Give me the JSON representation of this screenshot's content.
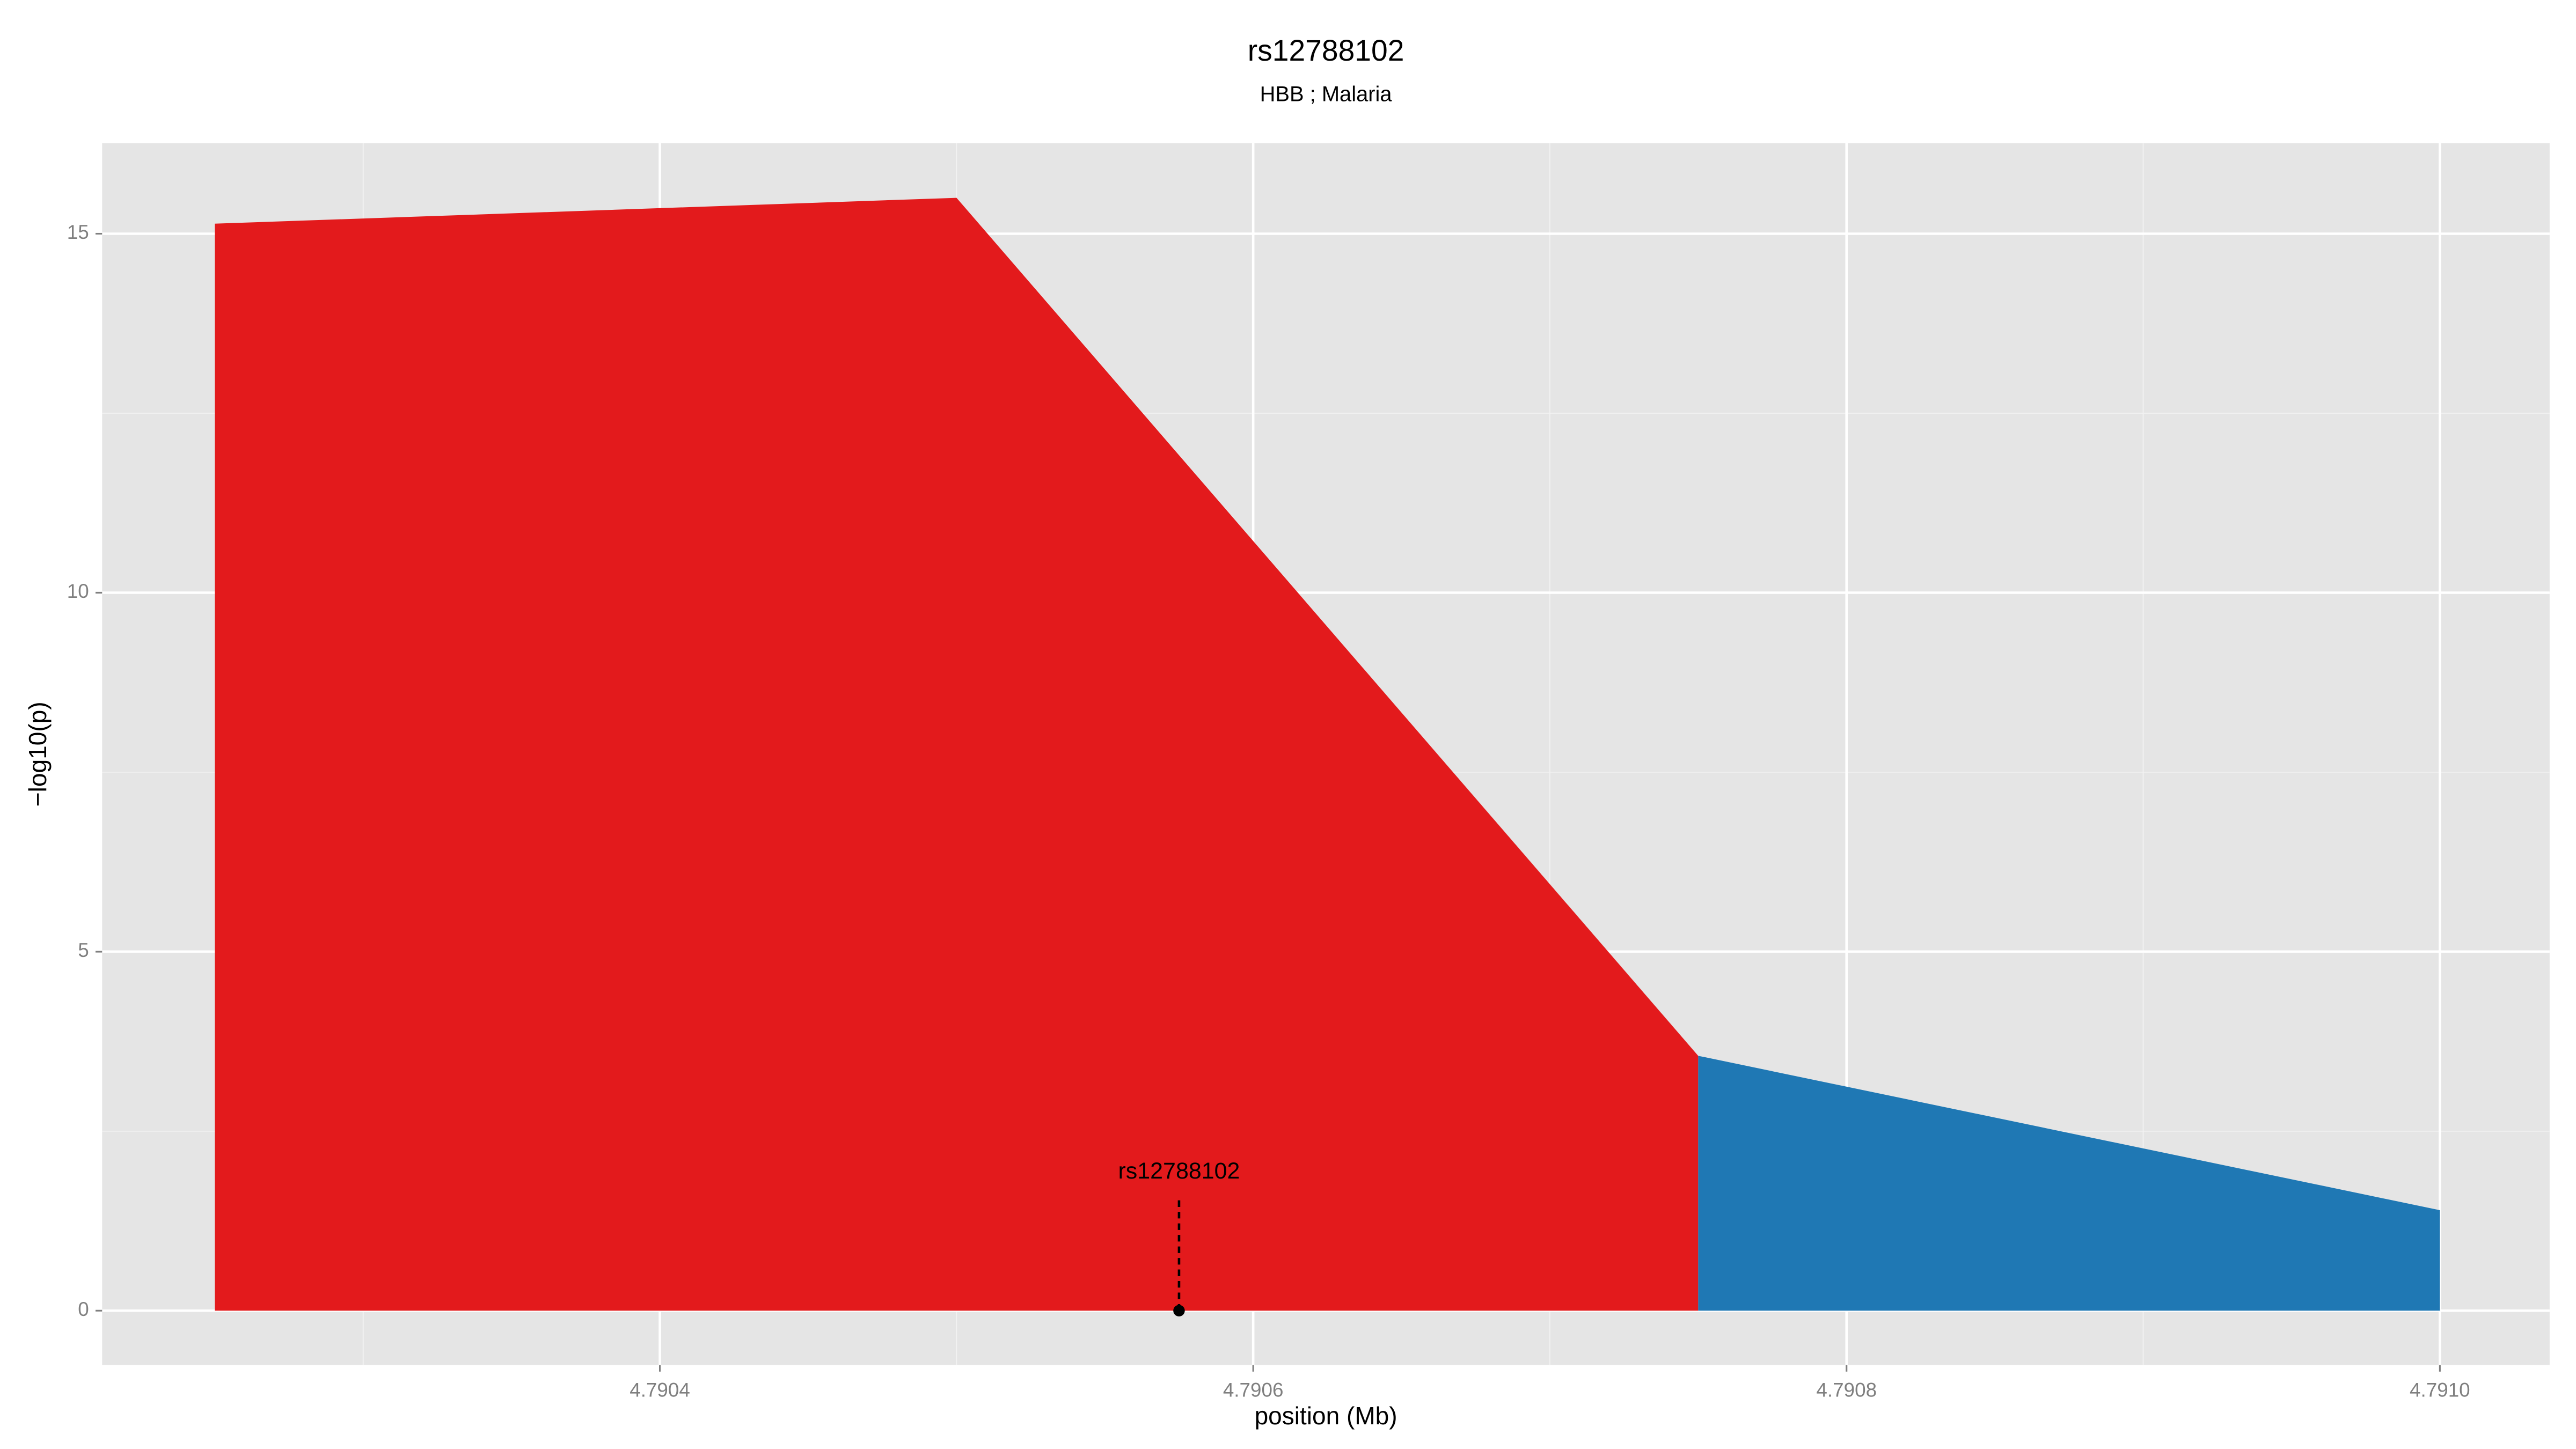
{
  "chart_data": {
    "type": "area",
    "title": "rs12788102",
    "subtitle": "HBB ; Malaria",
    "xlabel": "position (Mb)",
    "ylabel": "−log10(p)",
    "x": [
      4.79025,
      4.7905,
      4.79075,
      4.791
    ],
    "series": [
      {
        "color": "#e31a1c",
        "values": [
          15.14,
          15.5,
          3.55,
          null
        ]
      },
      {
        "color": "#1f78b4",
        "values": [
          null,
          null,
          3.55,
          1.4
        ]
      }
    ],
    "xlim": [
      4.790212,
      4.791037
    ],
    "ylim": [
      -0.757,
      16.26
    ],
    "xticks": [
      4.7904,
      4.7906,
      4.7908,
      {
        "value": 4.791,
        "label": "4.7910"
      }
    ],
    "yticks": [
      0,
      5,
      10,
      15
    ],
    "grid": true,
    "annotation": {
      "text": "rs12788102",
      "x": 4.790575,
      "y": 0
    }
  }
}
